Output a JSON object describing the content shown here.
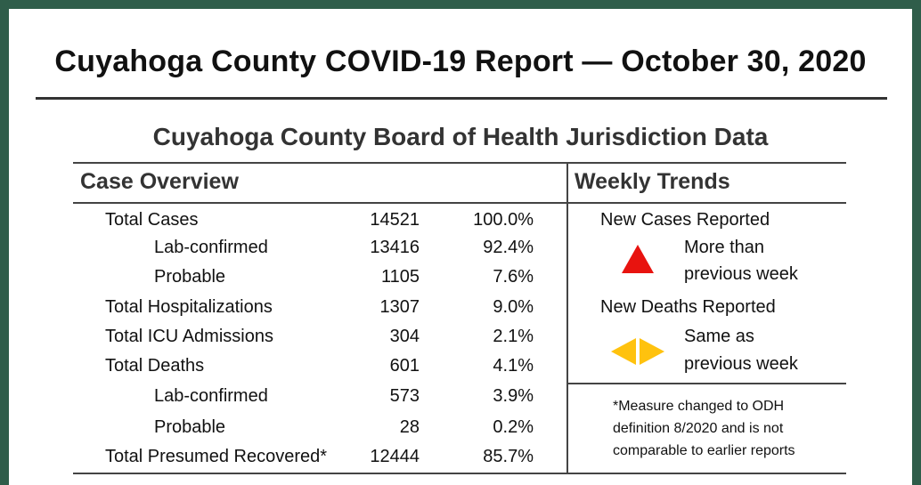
{
  "report": {
    "title": "Cuyahoga County COVID-19 Report — October 30, 2020",
    "subtitle": "Cuyahoga County Board of Health Jurisdiction Data"
  },
  "case_overview": {
    "heading": "Case Overview",
    "rows": [
      {
        "label": "Total Cases",
        "count": "14521",
        "percent": "100.0%",
        "indent": false
      },
      {
        "label": "Lab-confirmed",
        "count": "13416",
        "percent": "92.4%",
        "indent": true
      },
      {
        "label": "Probable",
        "count": "1105",
        "percent": "7.6%",
        "indent": true
      },
      {
        "label": "Total Hospitalizations",
        "count": "1307",
        "percent": "9.0%",
        "indent": false
      },
      {
        "label": "Total ICU Admissions",
        "count": "304",
        "percent": "2.1%",
        "indent": false
      },
      {
        "label": "Total Deaths",
        "count": "601",
        "percent": "4.1%",
        "indent": false
      },
      {
        "label": "Lab-confirmed",
        "count": "573",
        "percent": "3.9%",
        "indent": true
      },
      {
        "label": "Probable",
        "count": "28",
        "percent": "0.2%",
        "indent": true
      },
      {
        "label": "Total Presumed Recovered*",
        "count": "12444",
        "percent": "85.7%",
        "indent": false
      }
    ]
  },
  "weekly_trends": {
    "heading": "Weekly Trends",
    "cases": {
      "label": "New Cases Reported",
      "line1": "More than",
      "line2": "previous week",
      "icon": "up-triangle-icon",
      "color": "#e8130f"
    },
    "deaths": {
      "label": "New Deaths Reported",
      "line1": "Same as",
      "line2": "previous week",
      "icon": "left-right-arrows-icon",
      "color": "#ffc20e"
    }
  },
  "footnote": {
    "line1": "*Measure changed to ODH",
    "line2": "definition 8/2020 and is not",
    "line3": "comparable to earlier reports"
  }
}
